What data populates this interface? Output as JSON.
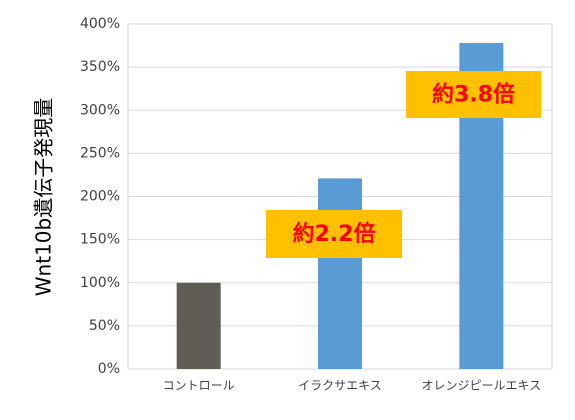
{
  "chart_data": {
    "type": "bar",
    "y_label": "Wnt10b遺伝子発現量",
    "categories": [
      "コントロール",
      "イラクサエキス",
      "オレンジピールエキス"
    ],
    "values": [
      100,
      221,
      378
    ],
    "colors": [
      "#5f5c55",
      "#5b9bd5",
      "#5b9bd5"
    ],
    "ylim": [
      0,
      400
    ],
    "yticks": [
      {
        "value": 0,
        "label": "0%"
      },
      {
        "value": 50,
        "label": "50%"
      },
      {
        "value": 100,
        "label": "100%"
      },
      {
        "value": 150,
        "label": "150%"
      },
      {
        "value": 200,
        "label": "200%"
      },
      {
        "value": 250,
        "label": "250%"
      },
      {
        "value": 300,
        "label": "300%"
      },
      {
        "value": 350,
        "label": "350%"
      },
      {
        "value": 400,
        "label": "400%"
      }
    ],
    "grid": true,
    "annotations": [
      "約2.2倍",
      "約3.8倍"
    ]
  }
}
